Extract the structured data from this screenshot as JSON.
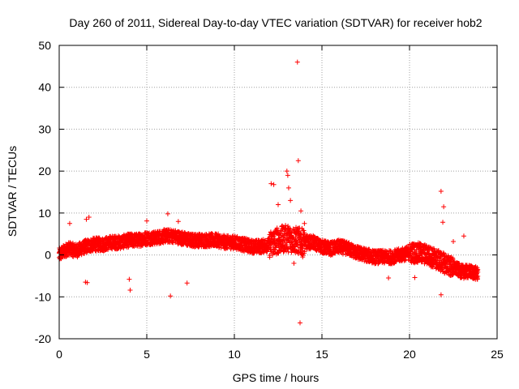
{
  "chart_data": {
    "type": "scatter",
    "title": "Day 260 of 2011, Sidereal Day-to-day VTEC variation (SDTVAR) for receiver hob2",
    "xlabel": "GPS time / hours",
    "ylabel": "SDTVAR / TECUs",
    "xlim": [
      0,
      25
    ],
    "ylim": [
      -20,
      50
    ],
    "xticks": [
      0,
      5,
      10,
      15,
      20,
      25
    ],
    "yticks": [
      -20,
      -10,
      0,
      10,
      20,
      30,
      40,
      50
    ],
    "grid": true,
    "marker": "+",
    "color": "#ff0000",
    "series": [
      {
        "name": "SDTVAR",
        "trend_x": [
          0,
          0.5,
          1,
          1.5,
          2,
          2.5,
          3,
          3.5,
          4,
          4.5,
          5,
          5.5,
          6,
          6.5,
          7,
          7.5,
          8,
          8.5,
          9,
          9.5,
          10,
          10.5,
          11,
          11.5,
          12,
          12.5,
          13,
          13.5,
          14,
          14.5,
          15,
          15.5,
          16,
          16.5,
          17,
          17.5,
          18,
          18.5,
          19,
          19.5,
          20,
          20.5,
          21,
          21.5,
          22,
          22.5,
          23,
          23.5,
          23.9
        ],
        "trend_y": [
          0,
          1.5,
          1,
          2,
          2.5,
          2.5,
          3,
          3,
          3.5,
          3.5,
          4,
          4,
          4.5,
          4.5,
          4,
          3.5,
          3.5,
          3.5,
          3.5,
          3,
          3,
          2.5,
          2,
          2,
          2.5,
          3.5,
          4,
          3.5,
          3,
          3,
          2,
          1.5,
          2,
          1.5,
          0.5,
          0,
          -0.5,
          -0.5,
          -0.5,
          0,
          0.5,
          0.5,
          0,
          -1,
          -2,
          -3,
          -4,
          -4,
          -4.5
        ],
        "points": [
          [
            13.6,
            46
          ],
          [
            13.65,
            22.5
          ],
          [
            13.75,
            -16.2
          ],
          [
            13.0,
            20
          ],
          [
            13.05,
            19
          ],
          [
            13.1,
            16
          ],
          [
            12.1,
            17
          ],
          [
            12.25,
            16.8
          ],
          [
            12.5,
            12
          ],
          [
            13.2,
            13
          ],
          [
            13.8,
            10.5
          ],
          [
            14.0,
            7.5
          ],
          [
            13.4,
            -2
          ],
          [
            13.9,
            -0.5
          ],
          [
            21.8,
            15.2
          ],
          [
            21.95,
            11.5
          ],
          [
            21.8,
            -9.5
          ],
          [
            20.3,
            -5.4
          ],
          [
            18.8,
            -5.5
          ],
          [
            6.2,
            9.8
          ],
          [
            6.35,
            -9.8
          ],
          [
            4.0,
            -5.8
          ],
          [
            4.05,
            -8.4
          ],
          [
            1.5,
            -6.5
          ],
          [
            1.6,
            -6.6
          ],
          [
            1.55,
            8.5
          ],
          [
            1.7,
            9
          ],
          [
            0.6,
            7.5
          ],
          [
            7.3,
            -6.7
          ],
          [
            6.8,
            8
          ],
          [
            5.0,
            8.1
          ],
          [
            22.5,
            3.2
          ],
          [
            23.1,
            4.5
          ],
          [
            21.9,
            7.8
          ]
        ]
      }
    ]
  }
}
